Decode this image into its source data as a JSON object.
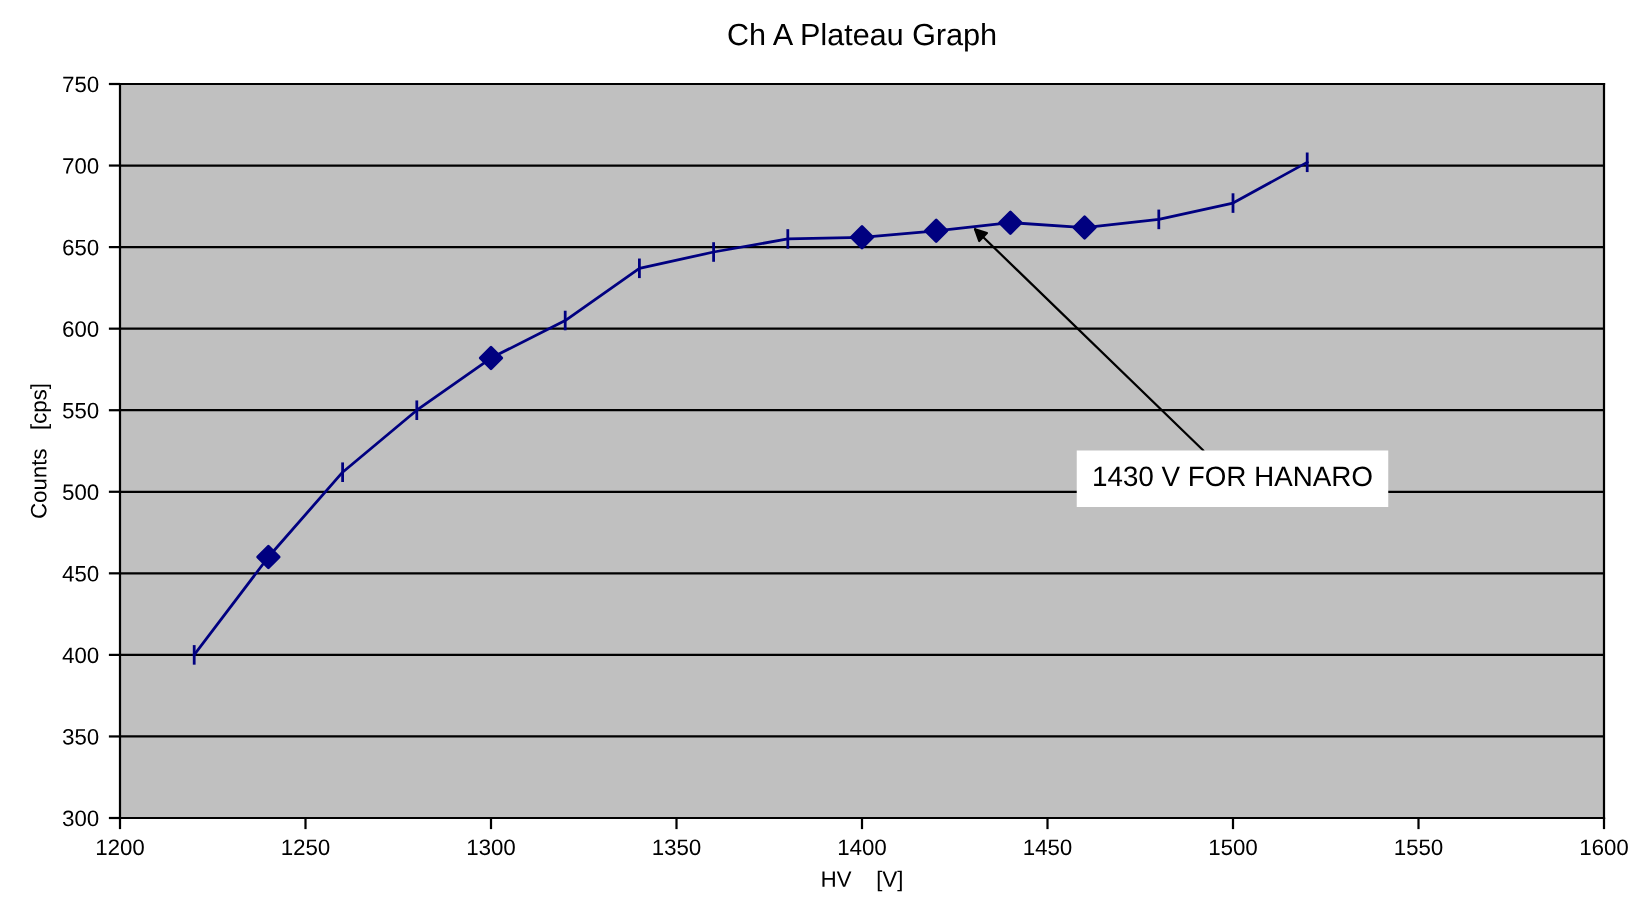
{
  "chart_data": {
    "type": "line",
    "title": "Ch A Plateau Graph",
    "xlabel": "HV    [V]",
    "ylabel": "Counts   [cps]",
    "x": [
      1220,
      1240,
      1260,
      1280,
      1300,
      1320,
      1340,
      1360,
      1380,
      1400,
      1420,
      1440,
      1460,
      1480,
      1500,
      1520
    ],
    "series": [
      {
        "color": "#000080",
        "marker": "none",
        "values": [
          400,
          460,
          512,
          550,
          582,
          605,
          637,
          647,
          655,
          656,
          660,
          665,
          662,
          667,
          677,
          702
        ],
        "errors": [
          6,
          6,
          6,
          6,
          6,
          6,
          6,
          6,
          6,
          6,
          6,
          6,
          6,
          6,
          6,
          6
        ]
      },
      {
        "type": "scatter",
        "color": "#000080",
        "marker": "diamond",
        "x": [
          1240,
          1300,
          1400,
          1420,
          1440,
          1460
        ],
        "values": [
          460,
          582,
          656,
          660,
          665,
          662
        ]
      }
    ],
    "xlim": [
      1200,
      1600
    ],
    "xticks": [
      1200,
      1250,
      1300,
      1350,
      1400,
      1450,
      1500,
      1550,
      1600
    ],
    "ylim": [
      300,
      750
    ],
    "yticks": [
      300,
      350,
      400,
      450,
      500,
      550,
      600,
      650,
      700,
      750
    ],
    "grid": "y",
    "legend": false,
    "annotations": [
      {
        "text": "1430 V FOR HANARO",
        "x": 1430,
        "y": 662
      }
    ]
  }
}
